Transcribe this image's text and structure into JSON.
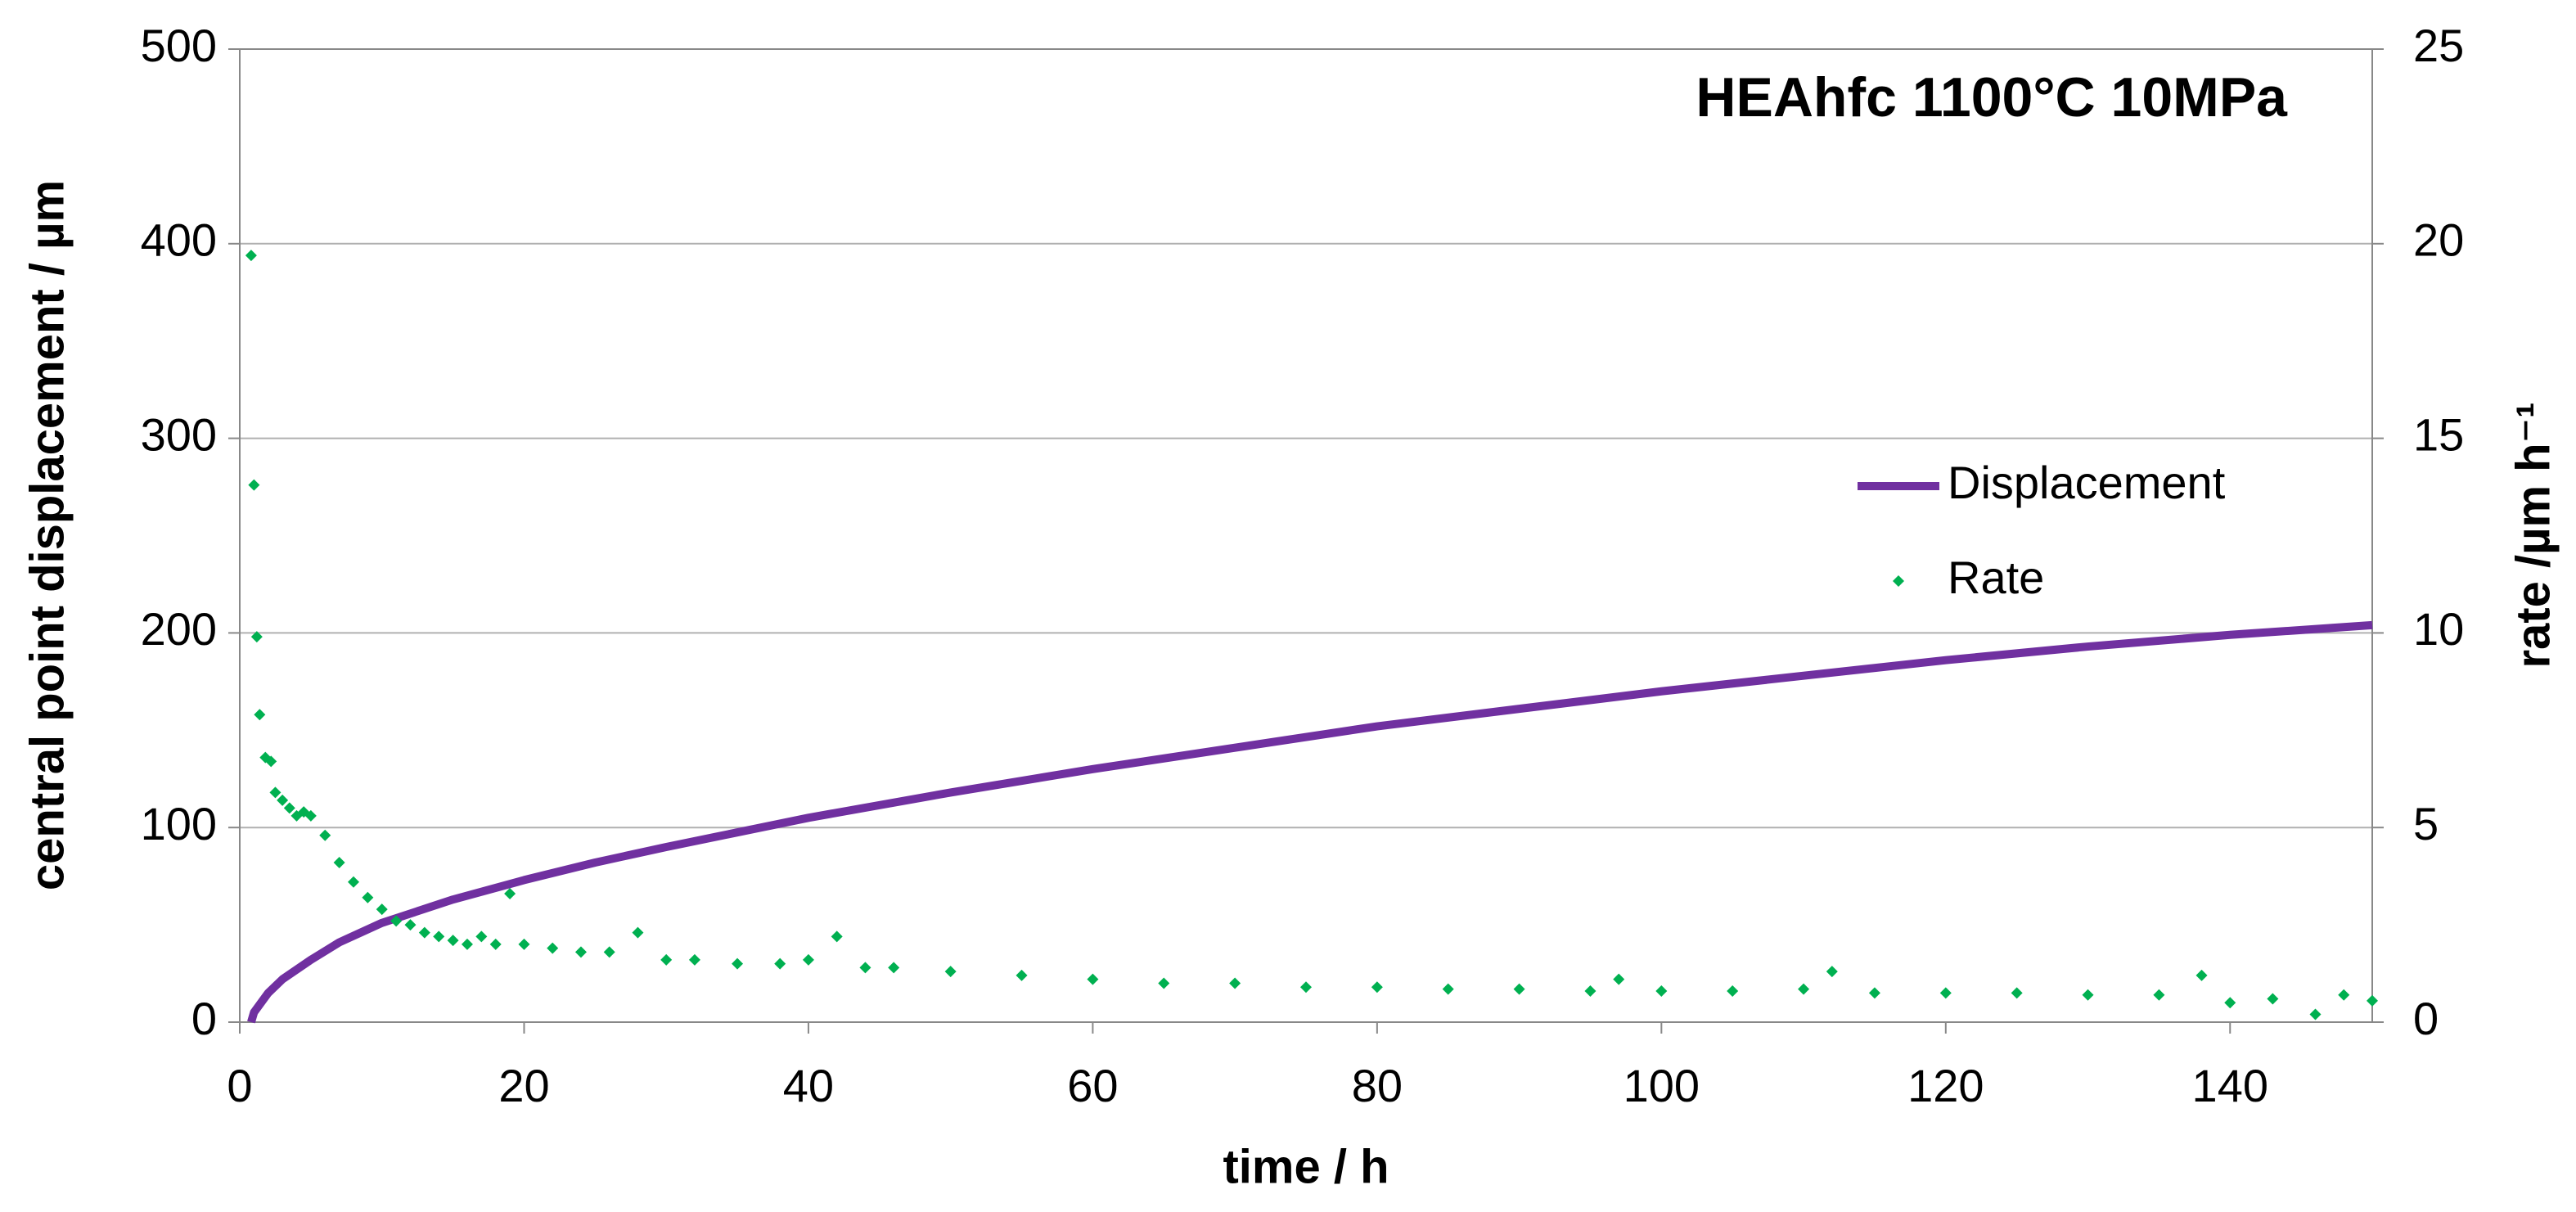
{
  "chart_data": {
    "type": "line",
    "title": "HEAhfc 1100°C 10MPa",
    "x_label": "time / h",
    "y_label": "central point displacement / µm",
    "y2_label": "rate /µm h⁻¹",
    "xlim": [
      0,
      150
    ],
    "xticks": [
      0,
      20,
      40,
      60,
      80,
      100,
      120,
      140
    ],
    "ylim": [
      0,
      500
    ],
    "yticks": [
      0,
      100,
      200,
      300,
      400,
      500
    ],
    "y2lim": [
      0,
      25
    ],
    "y2ticks": [
      0,
      5,
      10,
      15,
      20,
      25
    ],
    "grid": true,
    "legend": "right",
    "series": [
      {
        "name": "Displacement",
        "mark": "line",
        "color": "#7030a0",
        "x": [
          0.8,
          1,
          2,
          3,
          5,
          7,
          10,
          15,
          20,
          25,
          30,
          40,
          50,
          60,
          70,
          80,
          90,
          100,
          110,
          120,
          130,
          140,
          150
        ],
        "values": [
          0,
          5,
          15,
          22,
          32,
          41,
          51,
          63,
          73,
          82,
          90,
          105,
          118,
          130,
          141,
          152,
          161,
          170,
          178,
          186,
          193,
          199,
          204
        ]
      },
      {
        "name": "Rate",
        "mark": "scatter",
        "color": "#00b050",
        "axis": "y2",
        "x": [
          0.8,
          1,
          1.2,
          1.4,
          1.8,
          2.2,
          2.5,
          3,
          3.5,
          4,
          4.5,
          5,
          6,
          7,
          8,
          9,
          10,
          11,
          12,
          13,
          14,
          15,
          16,
          17,
          18,
          19,
          20,
          22,
          24,
          26,
          28,
          30,
          32,
          35,
          38,
          40,
          42,
          44,
          46,
          50,
          55,
          60,
          65,
          70,
          75,
          80,
          85,
          90,
          95,
          97,
          100,
          105,
          110,
          112,
          115,
          120,
          125,
          130,
          135,
          138,
          140,
          143,
          146,
          148,
          150
        ],
        "values": [
          19.7,
          13.8,
          9.9,
          7.9,
          6.8,
          6.7,
          5.9,
          5.7,
          5.5,
          5.3,
          5.4,
          5.3,
          4.8,
          4.1,
          3.6,
          3.2,
          2.9,
          2.6,
          2.5,
          2.3,
          2.2,
          2.1,
          2.0,
          2.2,
          2.0,
          3.3,
          2.0,
          1.9,
          1.8,
          1.8,
          2.3,
          1.6,
          1.6,
          1.5,
          1.5,
          1.6,
          2.2,
          1.4,
          1.4,
          1.3,
          1.2,
          1.1,
          1.0,
          1.0,
          0.9,
          0.9,
          0.85,
          0.85,
          0.8,
          1.1,
          0.8,
          0.8,
          0.85,
          1.3,
          0.75,
          0.75,
          0.75,
          0.7,
          0.7,
          1.2,
          0.5,
          0.6,
          0.2,
          0.7,
          0.55
        ]
      }
    ]
  }
}
